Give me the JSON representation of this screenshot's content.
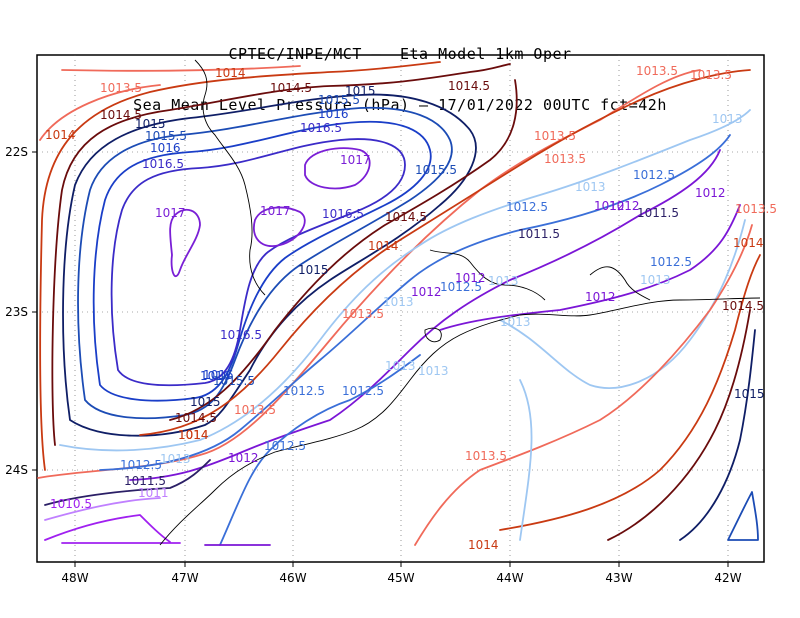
{
  "title": {
    "line1": "CPTEC/INPE/MCT –  Eta Model 1km Oper",
    "line2": "Sea Mean Level Pressure (hPa) – 17/01/2022 00UTC fct=42h"
  },
  "axes": {
    "x_ticks": [
      "48W",
      "47W",
      "46W",
      "45W",
      "44W",
      "43W",
      "42W"
    ],
    "y_ticks": [
      "22S",
      "23S",
      "24S"
    ],
    "grid": "dotted"
  },
  "contour_colors": {
    "1010.5": "#a020f0",
    "1011": "#c080ff",
    "1011.5": "#2b1f66",
    "1012": "#7b16d6",
    "1012.5": "#3a6fd8",
    "1013": "#9ec7f2",
    "1013.5": "#f06a5a",
    "1014": "#c93a12",
    "1014.5": "#6a0c0c",
    "1015": "#0f1e66",
    "1015.5": "#1c4cb5",
    "1016": "#1a3ec8",
    "1016.5": "#3b2bc8",
    "1017": "#7a1fd6"
  },
  "labels": [
    {
      "text": "1014",
      "level": "1014"
    },
    {
      "text": "1013.5",
      "level": "1013.5"
    },
    {
      "text": "1014.5",
      "level": "1014.5"
    },
    {
      "text": "1015",
      "level": "1015"
    },
    {
      "text": "1014.5",
      "level": "1014.5"
    },
    {
      "text": "1015.5",
      "level": "1015.5"
    },
    {
      "text": "1016",
      "level": "1016"
    },
    {
      "text": "1016.5",
      "level": "1016.5"
    },
    {
      "text": "1015",
      "level": "1015"
    },
    {
      "text": "1014",
      "level": "1014"
    },
    {
      "text": "1014.5",
      "level": "1014.5"
    },
    {
      "text": "1015.5",
      "level": "1015.5"
    },
    {
      "text": "1016",
      "level": "1016"
    },
    {
      "text": "1016.5",
      "level": "1016.5"
    },
    {
      "text": "1017",
      "level": "1017"
    },
    {
      "text": "1017",
      "level": "1017"
    },
    {
      "text": "1017",
      "level": "1017"
    },
    {
      "text": "1016.5",
      "level": "1016.5"
    },
    {
      "text": "1016",
      "level": "1016"
    },
    {
      "text": "1015.5",
      "level": "1015.5"
    },
    {
      "text": "1014.5",
      "level": "1014.5"
    },
    {
      "text": "1014",
      "level": "1014"
    },
    {
      "text": "1015",
      "level": "1015"
    },
    {
      "text": "1016.5",
      "level": "1016.5"
    },
    {
      "text": "1016",
      "level": "1016"
    },
    {
      "text": "1015.5",
      "level": "1015.5"
    },
    {
      "text": "1015",
      "level": "1015"
    },
    {
      "text": "1014.5",
      "level": "1014.5"
    },
    {
      "text": "1014",
      "level": "1014"
    },
    {
      "text": "1013.5",
      "level": "1013.5"
    },
    {
      "text": "1013.5",
      "level": "1013.5"
    },
    {
      "text": "1013",
      "level": "1013"
    },
    {
      "text": "1012.5",
      "level": "1012.5"
    },
    {
      "text": "1012",
      "level": "1012"
    },
    {
      "text": "1011.5",
      "level": "1011.5"
    },
    {
      "text": "1011",
      "level": "1011"
    },
    {
      "text": "1010.5",
      "level": "1010.5"
    },
    {
      "text": "1012.5",
      "level": "1012.5"
    },
    {
      "text": "1012.5",
      "level": "1012.5"
    },
    {
      "text": "1012.5",
      "level": "1012.5"
    },
    {
      "text": "1012",
      "level": "1012"
    },
    {
      "text": "1013.5",
      "level": "1013.5"
    },
    {
      "text": "1013",
      "level": "1013"
    },
    {
      "text": "1012",
      "level": "1012"
    },
    {
      "text": "1013",
      "level": "1013"
    },
    {
      "text": "1012.5",
      "level": "1012.5"
    },
    {
      "text": "1012",
      "level": "1012"
    },
    {
      "text": "1013",
      "level": "1013"
    },
    {
      "text": "1013",
      "level": "1013"
    },
    {
      "text": "1012.5",
      "level": "1012.5"
    },
    {
      "text": "1013",
      "level": "1013"
    },
    {
      "text": "1012.5",
      "level": "1012.5"
    },
    {
      "text": "1011.5",
      "level": "1011.5"
    },
    {
      "text": "1012",
      "level": "1012"
    },
    {
      "text": "1011.5",
      "level": "1011.5"
    },
    {
      "text": "1013.5",
      "level": "1013.5"
    },
    {
      "text": "1014",
      "level": "1014"
    },
    {
      "text": "1013",
      "level": "1013"
    },
    {
      "text": "1012.5",
      "level": "1012.5"
    },
    {
      "text": "1012",
      "level": "1012"
    },
    {
      "text": "1013",
      "level": "1013"
    },
    {
      "text": "1012",
      "level": "1012"
    },
    {
      "text": "1013",
      "level": "1013"
    },
    {
      "text": "1013.5",
      "level": "1013.5"
    },
    {
      "text": "1013.5",
      "level": "1013.5"
    },
    {
      "text": "1013.5",
      "level": "1013.5"
    },
    {
      "text": "1014",
      "level": "1014"
    },
    {
      "text": "1014.5",
      "level": "1014.5"
    },
    {
      "text": "1015",
      "level": "1015"
    },
    {
      "text": "1013.5",
      "level": "1013.5"
    },
    {
      "text": "1014",
      "level": "1014"
    }
  ]
}
